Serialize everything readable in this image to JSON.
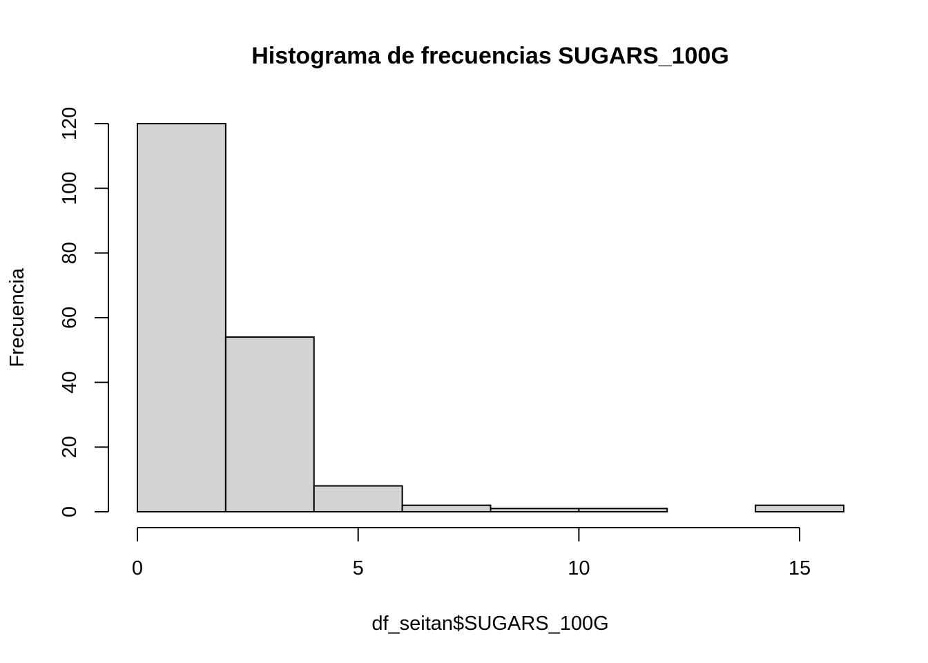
{
  "chart_data": {
    "type": "bar",
    "subtype": "histogram",
    "title": "Histograma de frecuencias SUGARS_100G",
    "xlabel": "df_seitan$SUGARS_100G",
    "ylabel": "Frecuencia",
    "bins": [
      {
        "x0": 0,
        "x1": 2,
        "count": 120
      },
      {
        "x0": 2,
        "x1": 4,
        "count": 54
      },
      {
        "x0": 4,
        "x1": 6,
        "count": 8
      },
      {
        "x0": 6,
        "x1": 8,
        "count": 2
      },
      {
        "x0": 8,
        "x1": 10,
        "count": 1
      },
      {
        "x0": 10,
        "x1": 12,
        "count": 1
      },
      {
        "x0": 12,
        "x1": 14,
        "count": 0
      },
      {
        "x0": 14,
        "x1": 16,
        "count": 2
      }
    ],
    "x_ticks": [
      0,
      5,
      10,
      15
    ],
    "x_tick_labels": [
      "0",
      "5",
      "10",
      "15"
    ],
    "y_ticks": [
      0,
      20,
      40,
      60,
      80,
      100,
      120
    ],
    "y_tick_labels": [
      "0",
      "20",
      "40",
      "60",
      "80",
      "100",
      "120"
    ],
    "xlim": [
      0,
      16
    ],
    "ylim": [
      0,
      120
    ],
    "grid": false,
    "legend": "none",
    "bar_fill": "#d3d3d3",
    "bar_stroke": "#000000"
  }
}
